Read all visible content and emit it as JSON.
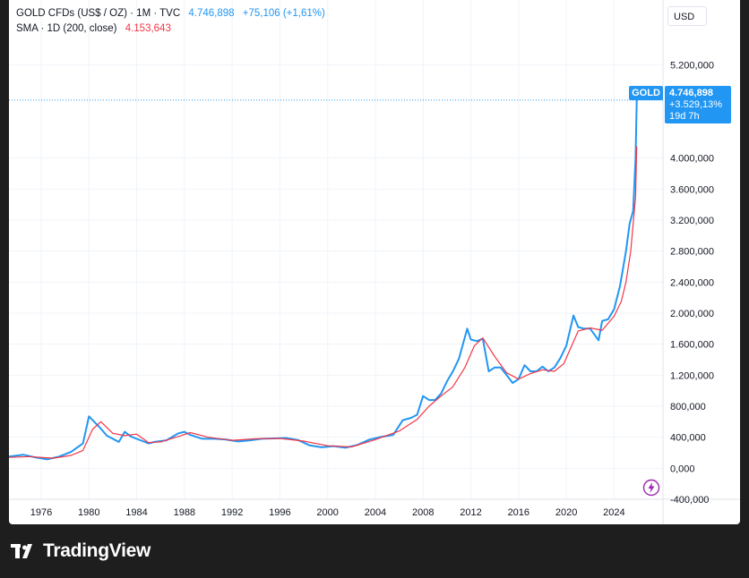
{
  "legend": {
    "symbol": "GOLD CFDs (US$ / OZ) · 1M · TVC",
    "price": "4.746,898",
    "change": "+75,106 (+1,61%)",
    "sma_label": "SMA · 1D (200, close)",
    "sma_value": "4.153,643"
  },
  "currency_button": "USD",
  "price_tag": {
    "symbol": "GOLD",
    "price": "4.746,898",
    "change_pct": "+3.529,13%",
    "countdown": "19d 7h"
  },
  "footer": {
    "brand": "TradingView"
  },
  "colors": {
    "price_line": "#2196f3",
    "sma_line": "#f23645",
    "accent": "#2196f3",
    "sma_text": "#f23645",
    "lightning": "#9c27b0"
  },
  "chart_data": {
    "type": "line",
    "ylim": [
      -400,
      5600
    ],
    "xlim": [
      1973.3,
      2028.1
    ],
    "y_ticks": [
      {
        "value": -400,
        "label": "-400,000"
      },
      {
        "value": 0,
        "label": "0,000"
      },
      {
        "value": 400,
        "label": "400,000"
      },
      {
        "value": 800,
        "label": "800,000"
      },
      {
        "value": 1200,
        "label": "1.200,000"
      },
      {
        "value": 1600,
        "label": "1.600,000"
      },
      {
        "value": 2000,
        "label": "2.000,000"
      },
      {
        "value": 2400,
        "label": "2.400,000"
      },
      {
        "value": 2800,
        "label": "2.800,000"
      },
      {
        "value": 3200,
        "label": "3.200,000"
      },
      {
        "value": 3600,
        "label": "3.600,000"
      },
      {
        "value": 4000,
        "label": "4.000,000"
      },
      {
        "value": 5200,
        "label": "5.200,000"
      }
    ],
    "x_ticks": [
      "1976",
      "1980",
      "1984",
      "1988",
      "1992",
      "1996",
      "2000",
      "2004",
      "2008",
      "2012",
      "2016",
      "2020",
      "2024"
    ],
    "x_tick_values": [
      1976,
      1980,
      1984,
      1988,
      1992,
      1996,
      2000,
      2004,
      2008,
      2012,
      2016,
      2020,
      2024
    ],
    "grid": true,
    "last_value": 4746.898,
    "series": [
      {
        "name": "GOLD",
        "x": [
          1973.3,
          1974.5,
          1975.5,
          1976.5,
          1977.5,
          1978.5,
          1979.5,
          1980.0,
          1980.5,
          1981.0,
          1981.5,
          1982.5,
          1983.0,
          1983.5,
          1984.5,
          1985.0,
          1985.5,
          1986.5,
          1987.5,
          1988.0,
          1988.5,
          1989.5,
          1990.5,
          1991.5,
          1992.5,
          1993.5,
          1994.5,
          1995.5,
          1996.5,
          1997.5,
          1998.5,
          1999.5,
          2000.5,
          2001.5,
          2002.5,
          2003.5,
          2004.5,
          2005.5,
          2006.3,
          2007.0,
          2007.5,
          2008.0,
          2008.5,
          2009.0,
          2009.5,
          2010.0,
          2010.5,
          2011.0,
          2011.7,
          2012.0,
          2012.5,
          2013.0,
          2013.5,
          2014.0,
          2014.5,
          2015.0,
          2015.5,
          2016.0,
          2016.5,
          2017.0,
          2017.5,
          2018.0,
          2018.5,
          2019.0,
          2019.5,
          2020.0,
          2020.6,
          2021.0,
          2021.5,
          2022.0,
          2022.7,
          2023.0,
          2023.5,
          2024.0,
          2024.5,
          2025.0,
          2025.3,
          2025.6,
          2025.8,
          2025.9
        ],
        "values": [
          150,
          175,
          140,
          115,
          150,
          210,
          320,
          670,
          590,
          510,
          420,
          340,
          470,
          410,
          350,
          320,
          340,
          360,
          450,
          470,
          430,
          380,
          380,
          370,
          345,
          360,
          380,
          385,
          390,
          365,
          295,
          270,
          285,
          265,
          300,
          370,
          405,
          430,
          620,
          650,
          690,
          930,
          880,
          880,
          960,
          1120,
          1250,
          1410,
          1800,
          1660,
          1640,
          1670,
          1250,
          1300,
          1300,
          1200,
          1100,
          1150,
          1330,
          1250,
          1250,
          1310,
          1250,
          1300,
          1420,
          1580,
          1970,
          1820,
          1800,
          1800,
          1650,
          1900,
          1920,
          2050,
          2350,
          2800,
          3150,
          3320,
          4000,
          4746.898
        ]
      },
      {
        "name": "SMA",
        "x": [
          1973.3,
          1975.0,
          1977.0,
          1978.5,
          1979.5,
          1980.3,
          1981.0,
          1982.0,
          1983.0,
          1984.0,
          1985.0,
          1986.0,
          1987.5,
          1988.5,
          1990.0,
          1992.0,
          1994.0,
          1996.0,
          1998.0,
          2000.0,
          2002.0,
          2004.0,
          2006.0,
          2007.5,
          2008.5,
          2009.5,
          2010.5,
          2011.5,
          2012.3,
          2013.0,
          2014.0,
          2015.0,
          2016.0,
          2017.0,
          2018.0,
          2019.0,
          2019.8,
          2020.5,
          2021.0,
          2022.0,
          2023.0,
          2024.0,
          2024.6,
          2025.0,
          2025.4,
          2025.8,
          2025.9
        ],
        "values": [
          140,
          150,
          130,
          165,
          230,
          500,
          600,
          450,
          420,
          440,
          330,
          340,
          410,
          460,
          400,
          360,
          380,
          385,
          350,
          290,
          275,
          370,
          480,
          630,
          800,
          930,
          1050,
          1300,
          1580,
          1680,
          1440,
          1230,
          1150,
          1220,
          1270,
          1250,
          1350,
          1600,
          1770,
          1810,
          1780,
          1960,
          2150,
          2400,
          2800,
          3500,
          4153.643
        ]
      }
    ]
  }
}
